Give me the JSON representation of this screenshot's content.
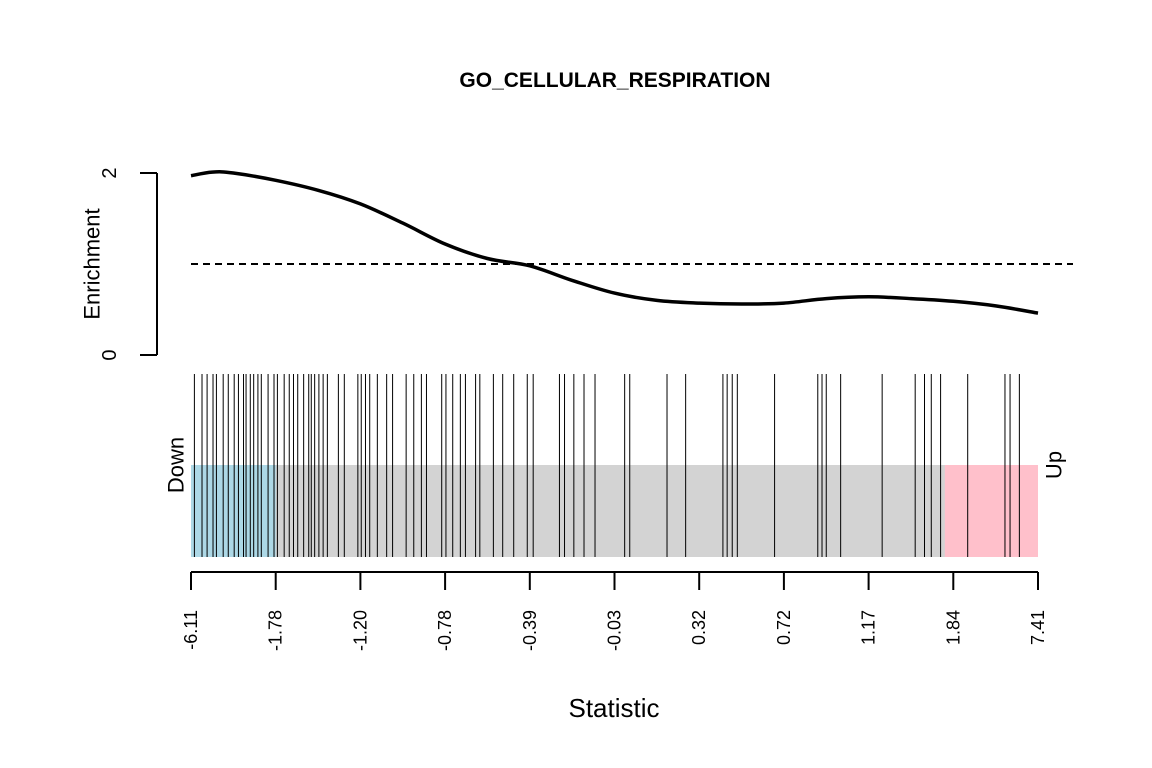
{
  "chart_data": {
    "type": "barcode_enrichment",
    "title": "GO_CELLULAR_RESPIRATION",
    "xlabel": "Statistic",
    "ylabel": "Enrichment",
    "y_ticks": [
      "0",
      "2"
    ],
    "ylim": [
      0,
      2
    ],
    "reference_line": 1,
    "down_label": "Down",
    "up_label": "Up",
    "x_tick_labels": [
      "-6.11",
      "-1.78",
      "-1.20",
      "-0.78",
      "-0.39",
      "-0.03",
      "0.32",
      "0.72",
      "1.17",
      "1.84",
      "7.41"
    ],
    "rank_range": [
      0,
      100
    ],
    "down_region": [
      0,
      10
    ],
    "up_region": [
      89,
      100
    ],
    "colors": {
      "down": "#add8e6",
      "middle": "#d3d3d3",
      "up": "#ffc0cb",
      "curve": "#000000",
      "barcode": "#000000"
    },
    "enrichment_curve": {
      "x": [
        0,
        2.5,
        5,
        10,
        15,
        20,
        25,
        30,
        35,
        40,
        45,
        50,
        55,
        60,
        65,
        70,
        75,
        80,
        85,
        90,
        95,
        100
      ],
      "y": [
        1.97,
        2.01,
        2.0,
        1.92,
        1.81,
        1.66,
        1.45,
        1.22,
        1.06,
        0.98,
        0.82,
        0.68,
        0.6,
        0.57,
        0.56,
        0.57,
        0.62,
        0.64,
        0.62,
        0.59,
        0.54,
        0.46
      ]
    },
    "gene_ranks": [
      0.4,
      1.3,
      1.9,
      2.6,
      3.0,
      3.8,
      4.4,
      5.1,
      5.6,
      6.2,
      6.5,
      7.0,
      7.4,
      7.9,
      8.3,
      9.1,
      9.8,
      10.2,
      11.0,
      11.6,
      12.1,
      12.6,
      13.3,
      13.9,
      14.2,
      14.6,
      15.1,
      15.6,
      16.1,
      17.4,
      18.1,
      19.7,
      20.1,
      20.6,
      21.1,
      22.0,
      23.1,
      23.8,
      25.4,
      26.3,
      27.2,
      27.8,
      29.6,
      30.1,
      30.9,
      31.8,
      32.4,
      33.6,
      34.1,
      35.7,
      36.8,
      38.1,
      39.7,
      40.4,
      43.5,
      44.1,
      45.2,
      46.4,
      47.7,
      51.2,
      51.8,
      56.2,
      58.4,
      62.8,
      63.3,
      63.9,
      64.5,
      68.9,
      74.0,
      74.5,
      75.0,
      76.7,
      81.6,
      85.5,
      86.6,
      87.4,
      88.5,
      91.7,
      96.1,
      96.7,
      97.8
    ]
  }
}
